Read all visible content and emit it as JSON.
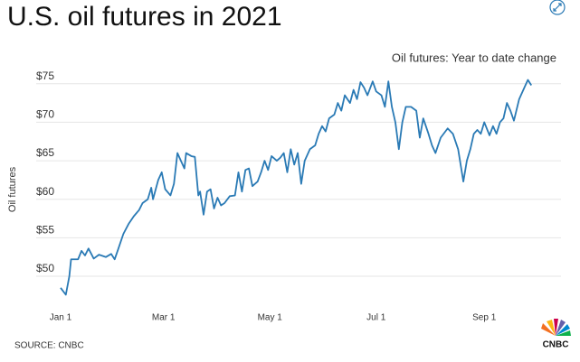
{
  "chart_data": {
    "type": "line",
    "title": "U.S. oil futures in 2021",
    "subtitle": "Oil futures: Year to date change",
    "y_label": "Oil futures",
    "source": "SOURCE: CNBC",
    "logo": "CNBC",
    "color": "#2a7ab5",
    "grid": true,
    "xlim": [
      -14,
      287
    ],
    "xticks": [
      {
        "value": 0,
        "label": "Jan 1"
      },
      {
        "value": 59,
        "label": "Mar 1"
      },
      {
        "value": 120,
        "label": "May 1"
      },
      {
        "value": 181,
        "label": "Jul 1"
      },
      {
        "value": 243,
        "label": "Sep 1"
      }
    ],
    "ylim": [
      46.5,
      77
    ],
    "yticks": [
      {
        "value": 50,
        "label": "$50"
      },
      {
        "value": 55,
        "label": "$55"
      },
      {
        "value": 60,
        "label": "$60"
      },
      {
        "value": 65,
        "label": "$65"
      },
      {
        "value": 70,
        "label": "$70"
      },
      {
        "value": 75,
        "label": "$75"
      }
    ],
    "x": [
      0,
      3,
      5,
      6,
      10,
      12,
      14,
      16,
      19,
      22,
      26,
      29,
      31,
      33,
      36,
      39,
      42,
      45,
      47,
      50,
      52,
      53,
      56,
      58,
      60,
      63,
      65,
      67,
      69,
      71,
      72,
      75,
      77,
      79,
      80,
      82,
      84,
      86,
      88,
      90,
      92,
      94,
      97,
      100,
      102,
      104,
      106,
      108,
      110,
      113,
      115,
      117,
      119,
      121,
      124,
      126,
      128,
      130,
      132,
      134,
      136,
      138,
      140,
      143,
      146,
      148,
      150,
      152,
      154,
      157,
      159,
      161,
      163,
      166,
      168,
      170,
      172,
      174,
      176,
      179,
      181,
      184,
      186,
      188,
      190,
      192,
      194,
      196,
      198,
      201,
      204,
      206,
      208,
      211,
      213,
      215,
      218,
      222,
      225,
      228,
      231,
      233,
      235,
      237,
      239,
      241,
      243,
      246,
      248,
      250,
      252,
      254,
      256,
      258,
      260,
      263,
      266,
      268,
      270
    ],
    "values": [
      48.5,
      47.6,
      50,
      52.2,
      52.2,
      53.3,
      52.7,
      53.6,
      52.3,
      52.8,
      52.5,
      52.9,
      52.2,
      53.5,
      55.5,
      56.8,
      57.8,
      58.6,
      59.5,
      60,
      61.5,
      60,
      62.5,
      63.5,
      61.3,
      60.5,
      62,
      66,
      65,
      64,
      66,
      65.6,
      65.5,
      60.5,
      61,
      58,
      61,
      61.3,
      58.8,
      60.2,
      59.2,
      59.5,
      60.4,
      60.5,
      63.5,
      61,
      63.8,
      64,
      61.7,
      62.3,
      63.5,
      65,
      63.8,
      65.6,
      65,
      65.4,
      66,
      63.5,
      66.5,
      64.5,
      66,
      62,
      65,
      66.5,
      67,
      68.5,
      69.5,
      68.8,
      70.5,
      71,
      72.5,
      71.5,
      73.5,
      72.5,
      74.2,
      73,
      75.2,
      74.5,
      73.5,
      75.3,
      74,
      73.5,
      72,
      75.3,
      72,
      70,
      66.5,
      70,
      72,
      72,
      71.5,
      68,
      70.5,
      68.5,
      67,
      66,
      68,
      69.2,
      68.5,
      66.5,
      62.3,
      65,
      66.5,
      68.5,
      69,
      68.5,
      70,
      68.3,
      69.5,
      68.5,
      70,
      70.5,
      72.5,
      71.5,
      70.2,
      73,
      74.5,
      75.5,
      74.8
    ]
  }
}
